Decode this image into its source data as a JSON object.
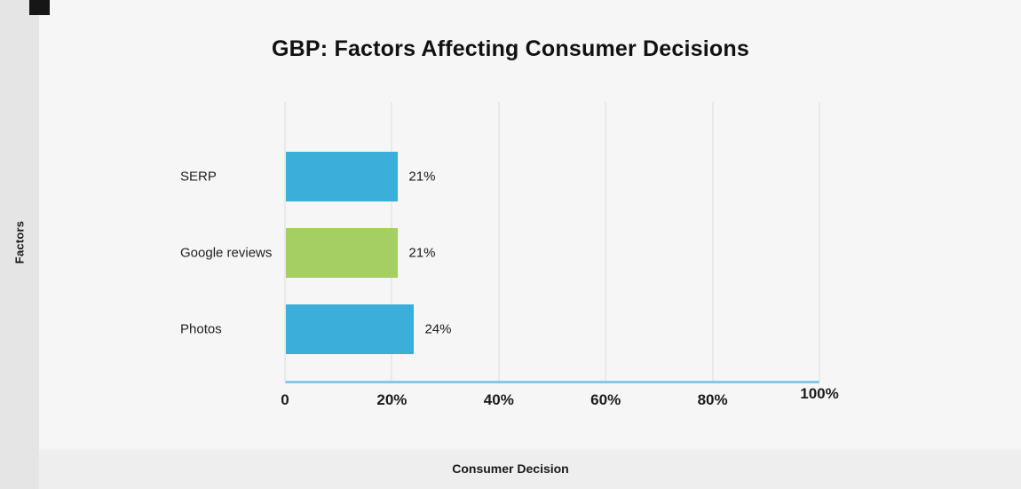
{
  "header": {
    "title": "GBP: Factors Affecting Consumer Decisions"
  },
  "axes": {
    "y_axis_label": "Factors",
    "x_axis_label": "Consumer Decision"
  },
  "chart_data": {
    "type": "bar",
    "orientation": "horizontal",
    "title": "GBP: Factors Affecting Consumer Decisions",
    "categories": [
      "SERP",
      "Google reviews",
      "Photos"
    ],
    "values": [
      21,
      21,
      24
    ],
    "value_labels": [
      "21%",
      "21%",
      "24%"
    ],
    "bar_colors": [
      "#3bafd9",
      "#a5cf63",
      "#3bafd9"
    ],
    "xlabel": "Consumer Decision",
    "ylabel": "Factors",
    "xlim": [
      0,
      100
    ],
    "x_ticks": [
      "0",
      "20%",
      "40%",
      "60%",
      "80%",
      "100%"
    ],
    "grid": true,
    "legend": false
  },
  "colors": {
    "canvas_bg": "#f6f6f6",
    "sidebar_bg": "#e5e5e5",
    "footer_bg": "#eeeeee",
    "bar_blue": "#3bafd9",
    "bar_green": "#a5cf63",
    "axis_line": "#85c8e8",
    "gridline": "#e9e9e9",
    "text": "#111111"
  }
}
